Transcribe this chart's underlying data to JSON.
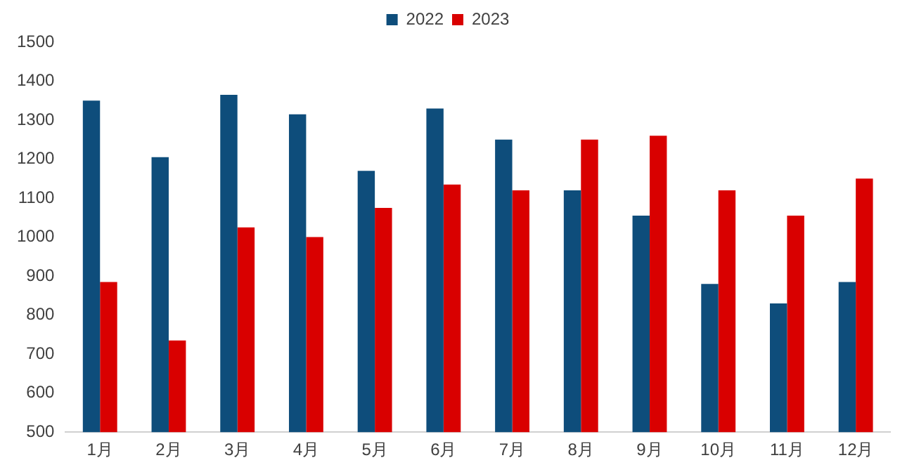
{
  "chart_data": {
    "type": "bar",
    "categories": [
      "1月",
      "2月",
      "3月",
      "4月",
      "5月",
      "6月",
      "7月",
      "8月",
      "9月",
      "10月",
      "11月",
      "12月"
    ],
    "series": [
      {
        "name": "2022",
        "color": "#0e4d7b",
        "values": [
          1350,
          1205,
          1365,
          1315,
          1170,
          1330,
          1250,
          1120,
          1055,
          880,
          830,
          885
        ]
      },
      {
        "name": "2023",
        "color": "#d90000",
        "values": [
          885,
          735,
          1025,
          1000,
          1075,
          1135,
          1120,
          1250,
          1260,
          1120,
          1055,
          1150
        ]
      }
    ],
    "ylim": [
      500,
      1500
    ],
    "yticks": [
      500,
      600,
      700,
      800,
      900,
      1000,
      1100,
      1200,
      1300,
      1400,
      1500
    ],
    "grid": false,
    "legend": "top"
  }
}
